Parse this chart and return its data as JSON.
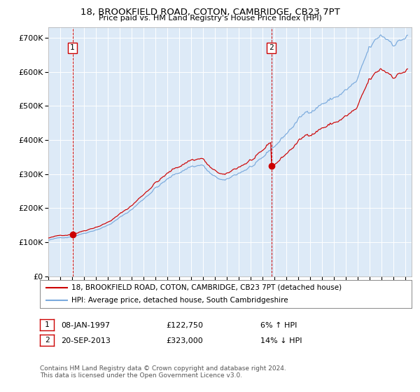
{
  "title": "18, BROOKFIELD ROAD, COTON, CAMBRIDGE, CB23 7PT",
  "subtitle": "Price paid vs. HM Land Registry's House Price Index (HPI)",
  "legend_line1": "18, BROOKFIELD ROAD, COTON, CAMBRIDGE, CB23 7PT (detached house)",
  "legend_line2": "HPI: Average price, detached house, South Cambridgeshire",
  "annotation1_label": "1",
  "annotation1_date": "08-JAN-1997",
  "annotation1_price": "£122,750",
  "annotation1_hpi": "6% ↑ HPI",
  "annotation1_year": 1997.03,
  "annotation1_value": 122750,
  "annotation2_label": "2",
  "annotation2_date": "20-SEP-2013",
  "annotation2_price": "£323,000",
  "annotation2_hpi": "14% ↓ HPI",
  "annotation2_year": 2013.72,
  "annotation2_value": 323000,
  "yticks": [
    0,
    100000,
    200000,
    300000,
    400000,
    500000,
    600000,
    700000
  ],
  "ylim": [
    0,
    730000
  ],
  "xlim_start": 1995.0,
  "xlim_end": 2025.5,
  "background_color": "#ddeaf7",
  "line_color_red": "#cc0000",
  "line_color_blue": "#7aaadd",
  "vline_color": "#cc0000",
  "grid_color": "#ffffff",
  "footer": "Contains HM Land Registry data © Crown copyright and database right 2024.\nThis data is licensed under the Open Government Licence v3.0."
}
